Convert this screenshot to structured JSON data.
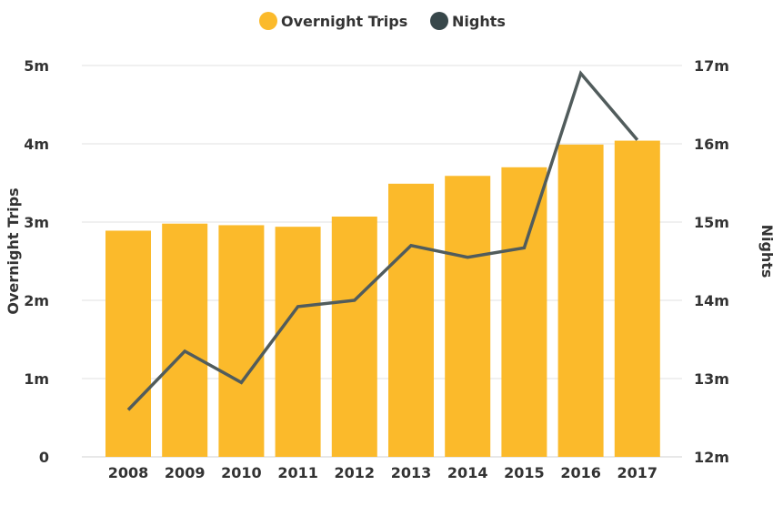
{
  "chart_data": {
    "type": "bar",
    "categories": [
      "2008",
      "2009",
      "2010",
      "2011",
      "2012",
      "2013",
      "2014",
      "2015",
      "2016",
      "2017"
    ],
    "series": [
      {
        "name": "Overnight Trips",
        "kind": "bar",
        "axis": "left",
        "color": "#FBBA2B",
        "values": [
          2.89,
          2.98,
          2.96,
          2.94,
          3.07,
          3.49,
          3.59,
          3.7,
          3.99,
          4.04
        ],
        "unit": "millions"
      },
      {
        "name": "Nights",
        "kind": "line",
        "axis": "right",
        "color": "#515C5C",
        "values": [
          12.6,
          13.35,
          12.95,
          13.92,
          14.0,
          14.7,
          14.55,
          14.67,
          16.9,
          16.05
        ],
        "unit": "millions"
      }
    ],
    "title": "",
    "xlabel": "",
    "ylabel": "Overnight Trips",
    "y2label": "Nights",
    "ylim": [
      0,
      5
    ],
    "y2lim": [
      12,
      17
    ],
    "yticks": [
      {
        "value": 0,
        "label": "0"
      },
      {
        "value": 1,
        "label": "1m"
      },
      {
        "value": 2,
        "label": "2m"
      },
      {
        "value": 3,
        "label": "3m"
      },
      {
        "value": 4,
        "label": "4m"
      },
      {
        "value": 5,
        "label": "5m"
      }
    ],
    "y2ticks": [
      {
        "value": 12,
        "label": "12m"
      },
      {
        "value": 13,
        "label": "13m"
      },
      {
        "value": 14,
        "label": "14m"
      },
      {
        "value": 15,
        "label": "15m"
      },
      {
        "value": 16,
        "label": "16m"
      },
      {
        "value": 17,
        "label": "17m"
      }
    ],
    "grid": true,
    "legend_position": "top-center"
  },
  "legend": {
    "items": [
      {
        "label": "Overnight Trips",
        "color": "#FBBA2B"
      },
      {
        "label": "Nights",
        "color": "#37474A"
      }
    ]
  }
}
